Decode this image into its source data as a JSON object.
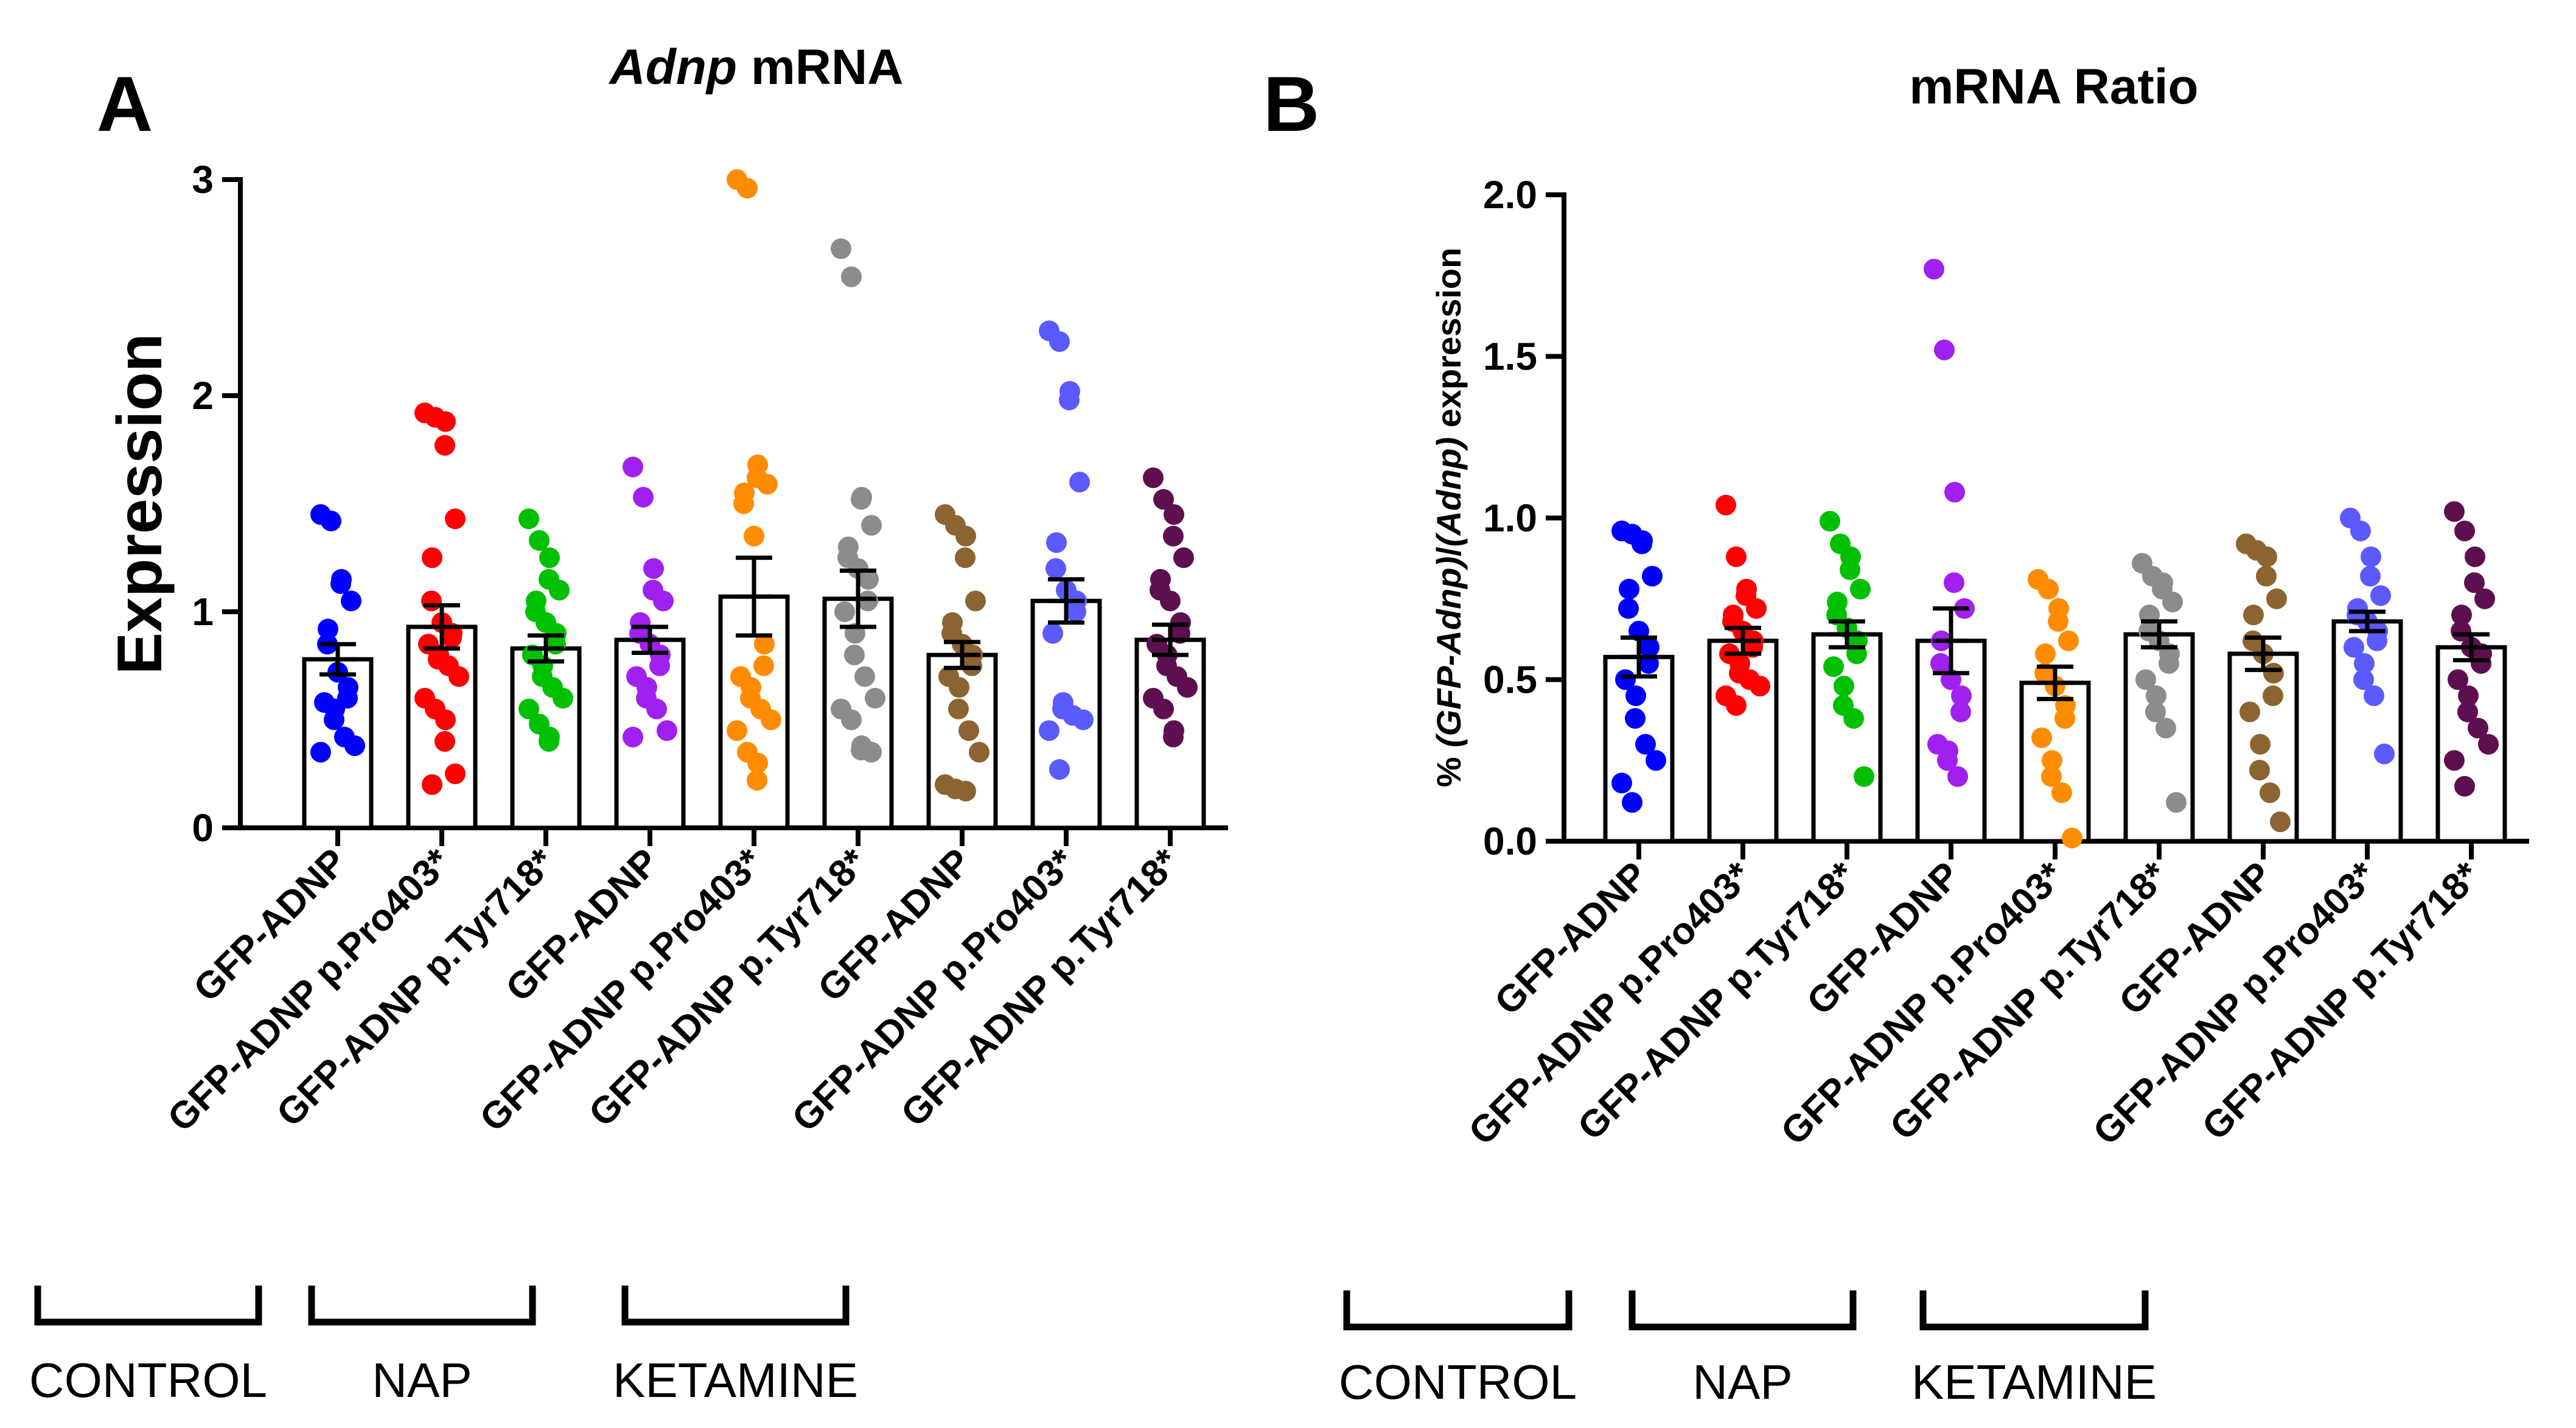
{
  "chart_data": [
    {
      "panel": "A",
      "type": "bar",
      "title_italic": "Adnp",
      "title_rest": " mRNA",
      "ylabel": "Expression",
      "ylim": [
        0,
        3
      ],
      "yticks": [
        "0",
        "1",
        "2",
        "3"
      ],
      "categories": [
        "GFP-ADNP",
        "GFP-ADNP p.Pro403*",
        "GFP-ADNP p.Tyr718*",
        "GFP-ADNP",
        "GFP-ADNP p.Pro403*",
        "GFP-ADNP p.Tyr718*",
        "GFP-ADNP",
        "GFP-ADNP p.Pro403*",
        "GFP-ADNP p.Tyr718*"
      ],
      "colors": [
        "#0000ff",
        "#ff0000",
        "#00c000",
        "#a020f0",
        "#ff8c00",
        "#8c8c8c",
        "#8b6431",
        "#5a5aff",
        "#5e0f4f"
      ],
      "values": [
        0.78,
        0.93,
        0.83,
        0.87,
        1.07,
        1.06,
        0.8,
        1.05,
        0.87
      ],
      "errors": [
        0.07,
        0.1,
        0.06,
        0.06,
        0.18,
        0.13,
        0.06,
        0.1,
        0.07
      ],
      "points": [
        [
          1.45,
          1.42,
          1.15,
          1.13,
          1.05,
          0.92,
          0.85,
          0.72,
          0.65,
          0.6,
          0.58,
          0.55,
          0.5,
          0.42,
          0.38,
          0.35
        ],
        [
          1.92,
          1.9,
          1.88,
          1.77,
          1.43,
          1.25,
          1.05,
          0.95,
          0.9,
          0.88,
          0.85,
          0.8,
          0.78,
          0.75,
          0.7,
          0.6,
          0.55,
          0.5,
          0.4,
          0.25,
          0.2
        ],
        [
          1.43,
          1.33,
          1.25,
          1.15,
          1.1,
          1.05,
          1.0,
          0.95,
          0.9,
          0.85,
          0.8,
          0.75,
          0.7,
          0.65,
          0.6,
          0.55,
          0.48,
          0.42,
          0.4
        ],
        [
          1.67,
          1.53,
          1.2,
          1.1,
          1.05,
          0.95,
          0.9,
          0.85,
          0.8,
          0.75,
          0.7,
          0.65,
          0.6,
          0.55,
          0.45,
          0.42
        ],
        [
          3.0,
          2.96,
          1.68,
          1.62,
          1.59,
          1.55,
          1.5,
          1.35,
          0.85,
          0.75,
          0.7,
          0.65,
          0.6,
          0.55,
          0.5,
          0.45,
          0.35,
          0.3,
          0.22
        ],
        [
          2.68,
          2.55,
          1.53,
          1.52,
          1.4,
          1.3,
          1.25,
          1.2,
          1.15,
          1.05,
          1.0,
          0.9,
          0.8,
          0.7,
          0.6,
          0.55,
          0.5,
          0.38,
          0.36,
          0.35
        ],
        [
          1.45,
          1.4,
          1.35,
          1.25,
          1.05,
          0.95,
          0.9,
          0.85,
          0.8,
          0.75,
          0.7,
          0.65,
          0.55,
          0.45,
          0.35,
          0.2,
          0.18,
          0.17
        ],
        [
          2.3,
          2.25,
          2.02,
          1.98,
          1.6,
          1.32,
          1.2,
          1.1,
          1.05,
          1.0,
          0.9,
          0.58,
          0.55,
          0.52,
          0.5,
          0.45,
          0.27
        ],
        [
          1.62,
          1.52,
          1.45,
          1.35,
          1.25,
          1.15,
          1.1,
          1.05,
          0.95,
          0.9,
          0.85,
          0.8,
          0.75,
          0.7,
          0.65,
          0.6,
          0.55,
          0.45,
          0.42
        ]
      ],
      "groups": [
        "CONTROL",
        "NAP",
        "KETAMINE"
      ]
    },
    {
      "panel": "B",
      "type": "bar",
      "title": "mRNA Ratio",
      "ylabel_prefix": "% ",
      "ylabel_italic1": "(GFP-Adnp)",
      "ylabel_mid": "/",
      "ylabel_italic2": "(Adnp)",
      "ylabel_suffix": " expression",
      "ylim": [
        0,
        2
      ],
      "yticks": [
        "0.0",
        "0.5",
        "1.0",
        "1.5",
        "2.0"
      ],
      "categories": [
        "GFP-ADNP",
        "GFP-ADNP p.Pro403*",
        "GFP-ADNP p.Tyr718*",
        "GFP-ADNP",
        "GFP-ADNP p.Pro403*",
        "GFP-ADNP p.Tyr718*",
        "GFP-ADNP",
        "GFP-ADNP p.Pro403*",
        "GFP-ADNP p.Tyr718*"
      ],
      "colors": [
        "#0000ff",
        "#ff0000",
        "#00c000",
        "#a020f0",
        "#ff8c00",
        "#8c8c8c",
        "#8b6431",
        "#5a5aff",
        "#5e0f4f"
      ],
      "values": [
        0.57,
        0.62,
        0.64,
        0.62,
        0.49,
        0.64,
        0.58,
        0.68,
        0.6
      ],
      "errors": [
        0.06,
        0.04,
        0.04,
        0.1,
        0.05,
        0.04,
        0.05,
        0.03,
        0.04
      ],
      "points": [
        [
          0.96,
          0.95,
          0.93,
          0.92,
          0.82,
          0.78,
          0.72,
          0.65,
          0.6,
          0.55,
          0.5,
          0.45,
          0.38,
          0.3,
          0.25,
          0.18,
          0.12
        ],
        [
          1.04,
          0.88,
          0.78,
          0.76,
          0.72,
          0.7,
          0.68,
          0.65,
          0.62,
          0.6,
          0.58,
          0.55,
          0.52,
          0.5,
          0.48,
          0.45,
          0.42
        ],
        [
          0.99,
          0.92,
          0.88,
          0.84,
          0.78,
          0.74,
          0.7,
          0.66,
          0.62,
          0.58,
          0.54,
          0.48,
          0.42,
          0.38,
          0.2
        ],
        [
          1.77,
          1.52,
          1.08,
          0.8,
          0.72,
          0.62,
          0.55,
          0.5,
          0.45,
          0.4,
          0.3,
          0.28,
          0.25,
          0.2
        ],
        [
          0.81,
          0.78,
          0.72,
          0.68,
          0.62,
          0.58,
          0.52,
          0.48,
          0.42,
          0.38,
          0.32,
          0.25,
          0.2,
          0.15,
          0.01
        ],
        [
          0.86,
          0.82,
          0.8,
          0.78,
          0.74,
          0.7,
          0.65,
          0.62,
          0.58,
          0.55,
          0.5,
          0.45,
          0.4,
          0.35,
          0.12
        ],
        [
          0.92,
          0.9,
          0.88,
          0.82,
          0.75,
          0.7,
          0.62,
          0.58,
          0.52,
          0.45,
          0.4,
          0.3,
          0.22,
          0.15,
          0.06
        ],
        [
          1.0,
          0.96,
          0.88,
          0.82,
          0.76,
          0.72,
          0.7,
          0.68,
          0.65,
          0.62,
          0.6,
          0.55,
          0.5,
          0.45,
          0.27
        ],
        [
          1.02,
          0.96,
          0.88,
          0.8,
          0.75,
          0.7,
          0.65,
          0.6,
          0.58,
          0.55,
          0.5,
          0.45,
          0.4,
          0.35,
          0.3,
          0.25,
          0.17
        ]
      ],
      "groups": [
        "CONTROL",
        "NAP",
        "KETAMINE"
      ]
    }
  ]
}
